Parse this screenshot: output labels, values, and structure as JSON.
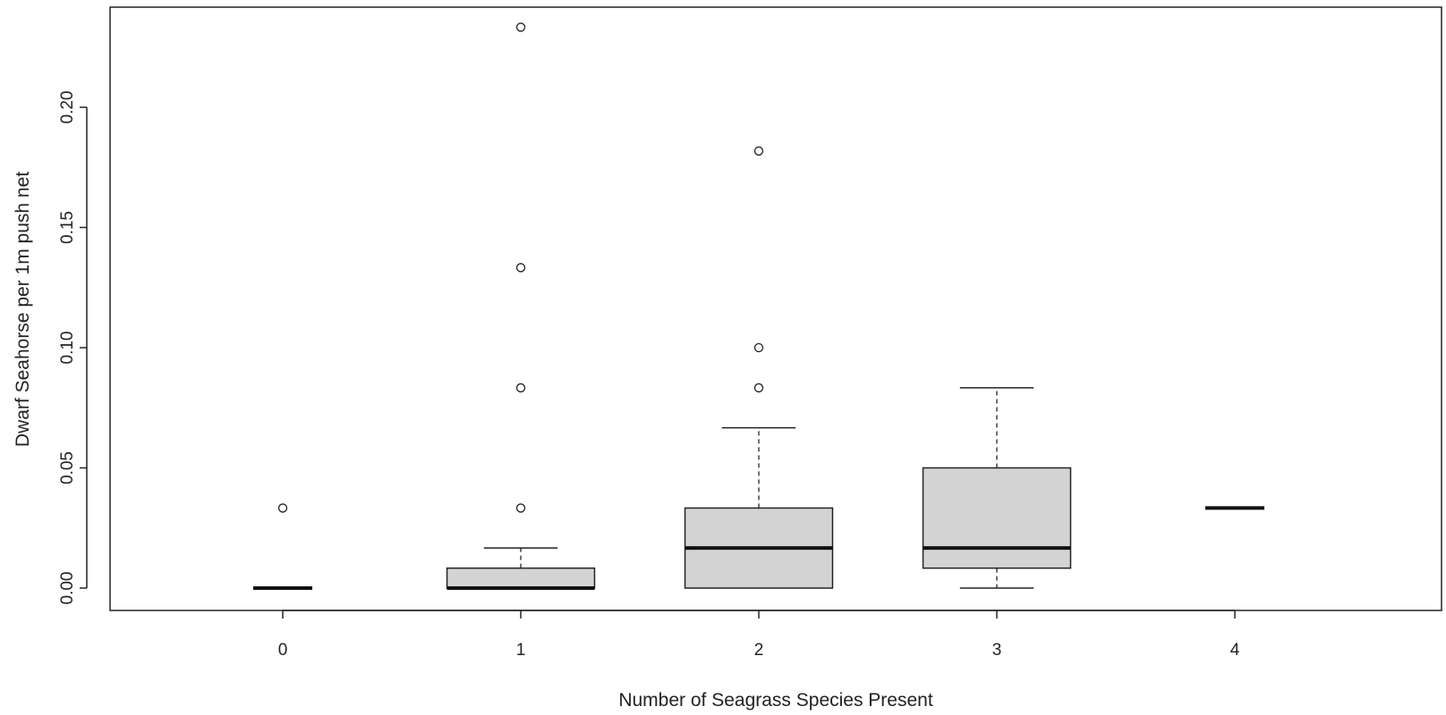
{
  "chart_data": {
    "type": "boxplot",
    "xlabel": "Number of Seagrass Species Present",
    "ylabel": "Dwarf Seahorse per 1m push net",
    "categories": [
      "0",
      "1",
      "2",
      "3",
      "4"
    ],
    "ylim": [
      -0.01,
      0.242
    ],
    "y_ticks": [
      {
        "value": 0.0,
        "label": "0.00"
      },
      {
        "value": 0.05,
        "label": "0.05"
      },
      {
        "value": 0.1,
        "label": "0.10"
      },
      {
        "value": 0.15,
        "label": "0.15"
      },
      {
        "value": 0.2,
        "label": "0.20"
      }
    ],
    "grid": false,
    "legend": "none",
    "box_fill": "#d3d3d3",
    "boxes": [
      {
        "category": "0",
        "whisker_low": 0.0,
        "q1": 0.0,
        "median": 0.0,
        "q3": 0.0,
        "whisker_high": 0.0,
        "outliers": [
          0.0333
        ]
      },
      {
        "category": "1",
        "whisker_low": 0.0,
        "q1": 0.0,
        "median": 0.0,
        "q3": 0.0083,
        "whisker_high": 0.0167,
        "outliers": [
          0.0333,
          0.0833,
          0.1333,
          0.2333
        ]
      },
      {
        "category": "2",
        "whisker_low": 0.0,
        "q1": 0.0,
        "median": 0.0167,
        "q3": 0.0333,
        "whisker_high": 0.0667,
        "outliers": [
          0.0833,
          0.1,
          0.1818
        ]
      },
      {
        "category": "3",
        "whisker_low": 0.0,
        "q1": 0.0083,
        "median": 0.0167,
        "q3": 0.05,
        "whisker_high": 0.0833,
        "outliers": []
      },
      {
        "category": "4",
        "whisker_low": 0.0333,
        "q1": 0.0333,
        "median": 0.0333,
        "q3": 0.0333,
        "whisker_high": 0.0333,
        "outliers": []
      }
    ]
  }
}
